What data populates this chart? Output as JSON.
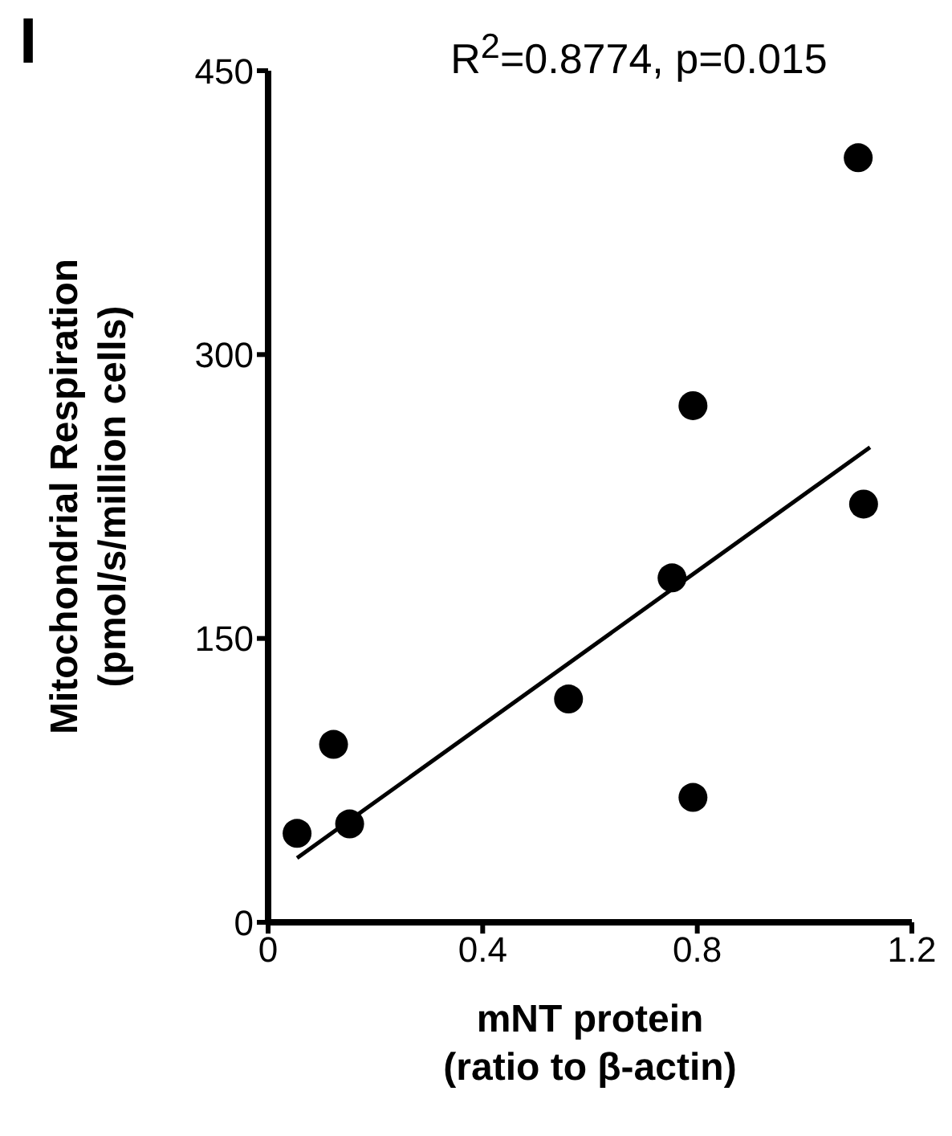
{
  "chart_data": {
    "type": "scatter",
    "title": "R$^{2}$=0.8774, p=0.015",
    "xlabel": "mNT protein\n(ratio to β-actin)",
    "ylabel": "Mitochondrial Respiration\n(pmol/s/million cells)",
    "annotations": [
      "I"
    ],
    "series": [
      {
        "color": "#000000",
        "marker": "circle",
        "x": [
          0.054,
          0.122,
          0.152,
          0.56,
          0.753,
          0.792,
          0.792,
          1.11,
          1.1
        ],
        "values": [
          47,
          94,
          52,
          118,
          182,
          66,
          273,
          221,
          404
        ]
      },
      {
        "type": "line",
        "color": "#000000",
        "x": [
          0.054,
          1.122
        ],
        "values": [
          34,
          251
        ]
      }
    ],
    "xlim": [
      0,
      1.2
    ],
    "xticks": [
      0,
      0.4,
      0.8,
      1.2
    ],
    "ylim": [
      0,
      450
    ],
    "yticks": [
      0,
      150,
      300,
      450
    ],
    "grid": false,
    "legend": false,
    "line_style": "solid"
  }
}
